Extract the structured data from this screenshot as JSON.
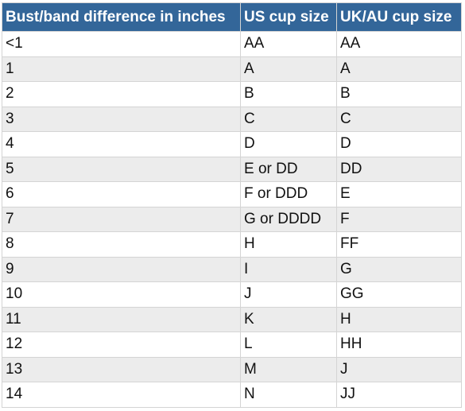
{
  "table": {
    "headers": [
      "Bust/band difference in inches",
      "US cup size",
      "UK/AU cup size"
    ],
    "rows": [
      [
        "<1",
        "AA",
        "AA"
      ],
      [
        "1",
        "A",
        "A"
      ],
      [
        "2",
        "B",
        "B"
      ],
      [
        "3",
        "C",
        "C"
      ],
      [
        "4",
        "D",
        "D"
      ],
      [
        "5",
        "E or DD",
        "DD"
      ],
      [
        "6",
        "F or DDD",
        "E"
      ],
      [
        "7",
        "G or DDDD",
        "F"
      ],
      [
        "8",
        "H",
        "FF"
      ],
      [
        "9",
        "I",
        "G"
      ],
      [
        "10",
        "J",
        "GG"
      ],
      [
        "11",
        "K",
        "H"
      ],
      [
        "12",
        "L",
        "HH"
      ],
      [
        "13",
        "M",
        "J"
      ],
      [
        "14",
        "N",
        "JJ"
      ]
    ]
  },
  "colors": {
    "header_bg": "#336699",
    "header_text": "#ffffff",
    "row_alt_bg": "#ececec",
    "border": "#d4d4d4"
  }
}
